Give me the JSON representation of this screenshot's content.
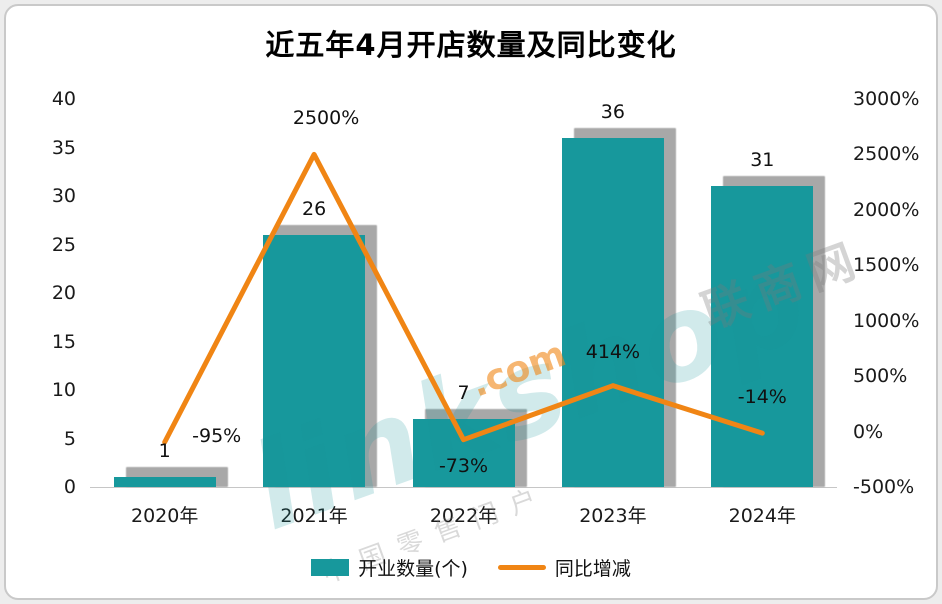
{
  "chart_data": {
    "type": "bar+line",
    "title": "近五年4月开店数量及同比变化",
    "categories": [
      "2020年",
      "2021年",
      "2022年",
      "2023年",
      "2024年"
    ],
    "series": [
      {
        "name": "开业数量(个)",
        "chart": "bar",
        "axis": "left",
        "values": [
          1,
          26,
          7,
          36,
          31
        ],
        "data_labels": [
          "1",
          "26",
          "7",
          "36",
          "31"
        ],
        "color": "#17989c"
      },
      {
        "name": "同比增减",
        "chart": "line",
        "axis": "right",
        "values": [
          -95,
          2500,
          -73,
          414,
          -14
        ],
        "data_labels": [
          "-95%",
          "2500%",
          "-73%",
          "414%",
          "-14%"
        ],
        "color": "#f08514"
      }
    ],
    "left_axis": {
      "min": 0,
      "max": 40,
      "step": 5,
      "ticks": [
        "0",
        "5",
        "10",
        "15",
        "20",
        "25",
        "30",
        "35",
        "40"
      ]
    },
    "right_axis": {
      "min": -500,
      "max": 3000,
      "step": 500,
      "ticks": [
        "-500%",
        "0%",
        "500%",
        "1000%",
        "1500%",
        "2000%",
        "2500%",
        "3000%"
      ]
    },
    "grid": false,
    "legend_position": "bottom"
  },
  "legend": {
    "bar_label": "开业数量(个)",
    "line_label": "同比增减"
  },
  "watermark": {
    "main": "linkshop",
    "dotcom": ".com",
    "cn1": "联商网",
    "cn2": "中国零售门户"
  },
  "colors": {
    "bar": "#17989c",
    "line": "#f08514",
    "shadow": "#a8a8a8",
    "axis_text": "#1a1a1a",
    "title": "#000000"
  }
}
